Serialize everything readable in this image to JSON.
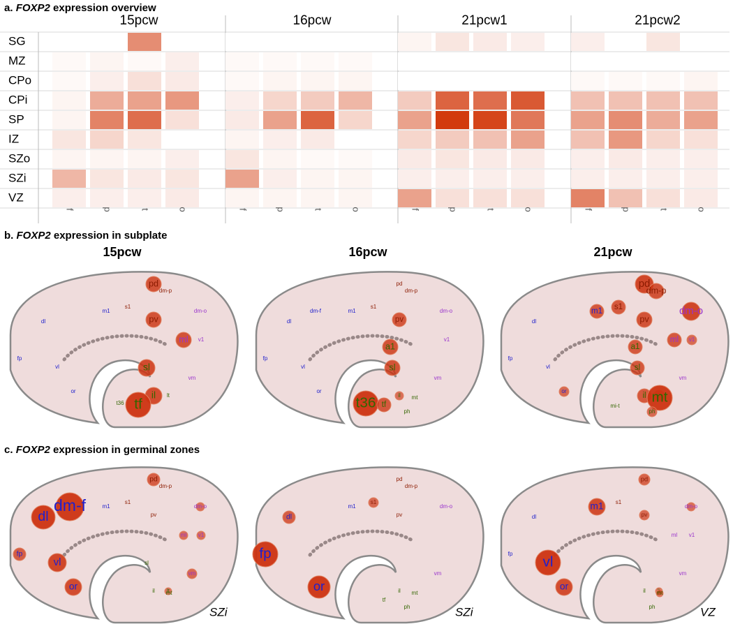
{
  "panel_a": {
    "label": "a.",
    "gene": "FOXP2",
    "text": "expression overview",
    "groups": [
      "15pcw",
      "16pcw",
      "21pcw1",
      "21pcw2"
    ],
    "rows": [
      "SG",
      "MZ",
      "CPo",
      "CPi",
      "SP",
      "IZ",
      "SZo",
      "SZi",
      "VZ"
    ],
    "columns": [
      "f",
      "p",
      "t",
      "o"
    ],
    "color": "#d03000",
    "values": [
      [
        [
          0,
          0,
          0.55,
          0
        ],
        [
          0.03,
          0.05,
          0.03,
          0.08
        ],
        [
          0.03,
          0.08,
          0.15,
          0.1
        ],
        [
          0.05,
          0.4,
          0.45,
          0.5
        ],
        [
          0.05,
          0.6,
          0.7,
          0.15
        ],
        [
          0.12,
          0.2,
          0.12,
          0
        ],
        [
          0.05,
          0.05,
          0.05,
          0.08
        ],
        [
          0.35,
          0.12,
          0.1,
          0.12
        ],
        [
          0.08,
          0.08,
          0.08,
          0.1
        ]
      ],
      [
        [
          0,
          0,
          0,
          0
        ],
        [
          0.03,
          0.03,
          0.03,
          0.03
        ],
        [
          0.03,
          0.05,
          0.05,
          0.05
        ],
        [
          0.08,
          0.2,
          0.25,
          0.35
        ],
        [
          0.1,
          0.45,
          0.75,
          0.2
        ],
        [
          0.05,
          0.08,
          0.1,
          0
        ],
        [
          0.12,
          0.05,
          0.03,
          0.03
        ],
        [
          0.45,
          0.08,
          0.05,
          0.05
        ],
        [
          0.05,
          0.05,
          0.05,
          0.05
        ]
      ],
      [
        [
          0.05,
          0.12,
          0.1,
          0.08
        ],
        [
          0,
          0,
          0,
          0
        ],
        [
          0,
          0,
          0,
          0
        ],
        [
          0.25,
          0.75,
          0.7,
          0.8
        ],
        [
          0.45,
          0.95,
          0.9,
          0.65
        ],
        [
          0.2,
          0.25,
          0.3,
          0.45
        ],
        [
          0.1,
          0.12,
          0.1,
          0.1
        ],
        [
          0.08,
          0.08,
          0.08,
          0.08
        ],
        [
          0.45,
          0.15,
          0.15,
          0.15
        ]
      ],
      [
        [
          0.08,
          0,
          0.12,
          0
        ],
        [
          0,
          0,
          0,
          0
        ],
        [
          0.03,
          0.03,
          0.03,
          0.05
        ],
        [
          0.3,
          0.3,
          0.3,
          0.3
        ],
        [
          0.45,
          0.55,
          0.4,
          0.45
        ],
        [
          0.3,
          0.5,
          0.2,
          0.15
        ],
        [
          0.08,
          0.1,
          0.08,
          0.08
        ],
        [
          0.08,
          0.08,
          0.08,
          0.08
        ],
        [
          0.6,
          0.3,
          0.15,
          0.1
        ]
      ]
    ]
  },
  "regions": [
    "pd",
    "dm-p",
    "s1",
    "m1",
    "dm-f",
    "dl",
    "pv",
    "dm-o",
    "ml",
    "v1",
    "fp",
    "vl",
    "sl",
    "a1",
    "or",
    "vm",
    "il",
    "lt",
    "t36",
    "tf",
    "mt",
    "ph",
    "mi-t"
  ],
  "region_colors": [
    "#8b1a00",
    "#8b1a00",
    "#8b1a00",
    "#2020cc",
    "#2020cc",
    "#2020cc",
    "#8b1a00",
    "#9933cc",
    "#9933cc",
    "#9933cc",
    "#2020cc",
    "#2020cc",
    "#336600",
    "#336600",
    "#2020cc",
    "#9933cc",
    "#336600",
    "#336600",
    "#336600",
    "#336600",
    "#336600",
    "#336600",
    "#336600"
  ],
  "bubble_color": "#cc3311",
  "panel_b": {
    "label": "b.",
    "gene": "FOXP2",
    "text": "expression in subplate",
    "brains": [
      {
        "title": "15pcw",
        "sizes": [
          11,
          0,
          0,
          0,
          null,
          0,
          11,
          0,
          11,
          0,
          0,
          0,
          12,
          null,
          0,
          0,
          12,
          0,
          0,
          18,
          null,
          null,
          null
        ]
      },
      {
        "title": "16pcw",
        "sizes": [
          0,
          0,
          0,
          0,
          0,
          0,
          10,
          0,
          null,
          0,
          0,
          0,
          11,
          11,
          0,
          0,
          6,
          null,
          18,
          10,
          0,
          0,
          null
        ]
      },
      {
        "title": "21pcw",
        "sizes": [
          13,
          11,
          10,
          10,
          null,
          0,
          11,
          13,
          10,
          7,
          0,
          0,
          10,
          10,
          7,
          0,
          10,
          8,
          null,
          null,
          18,
          7,
          0
        ]
      }
    ]
  },
  "panel_c": {
    "label": "c.",
    "gene": "FOXP2",
    "text": "expression in germinal zones",
    "brains": [
      {
        "zone": "SZi",
        "sizes": [
          9,
          0,
          0,
          0,
          20,
          17,
          0,
          6,
          6,
          6,
          9,
          13,
          0,
          null,
          12,
          7,
          0,
          5,
          null,
          null,
          0,
          null,
          null
        ]
      },
      {
        "zone": "SZi",
        "sizes": [
          0,
          0,
          7,
          0,
          null,
          9,
          0,
          0,
          null,
          null,
          18,
          null,
          null,
          null,
          16,
          0,
          0,
          null,
          null,
          0,
          0,
          0,
          null
        ]
      },
      {
        "zone": "VZ",
        "sizes": [
          8,
          null,
          0,
          12,
          null,
          0,
          7,
          6,
          0,
          0,
          0,
          18,
          null,
          null,
          12,
          0,
          0,
          5,
          null,
          null,
          5,
          0,
          null
        ]
      }
    ]
  }
}
